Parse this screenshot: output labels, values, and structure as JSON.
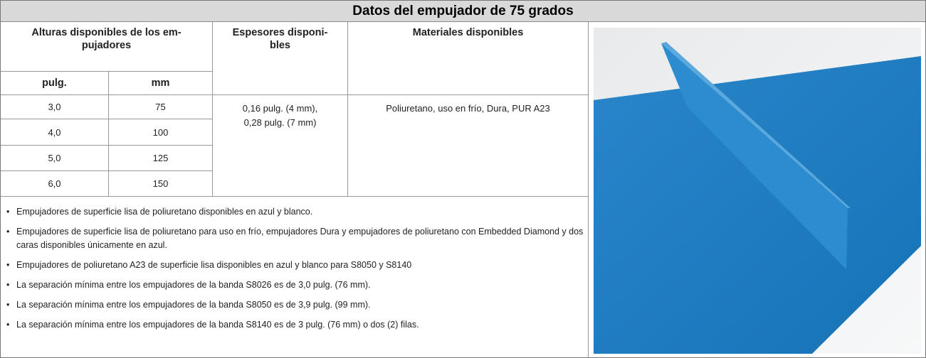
{
  "title": "Datos del empujador de 75 grados",
  "table": {
    "headers": [
      "Alturas disponibles de los em-\npujadores",
      "Espesores disponi-\nbles",
      "Materiales disponibles"
    ],
    "subheaders": [
      "pulg.",
      "mm"
    ],
    "rows": [
      [
        "3,0",
        "75"
      ],
      [
        "4,0",
        "100"
      ],
      [
        "5,0",
        "125"
      ],
      [
        "6,0",
        "150"
      ]
    ],
    "thicknesses": "0,16 pulg. (4 mm),\n0,28 pulg. (7 mm)",
    "materials": "Poliuretano, uso en frío, Dura, PUR A23"
  },
  "notes": [
    "Empujadores de superficie lisa de poliuretano disponibles en azul y blanco.",
    "Empujadores de superficie lisa de poliuretano para uso en frío, empujadores Dura y empujadores de poliuretano con Embedded Diamond y dos caras disponibles únicamente en azul.",
    "Empujadores de poliuretano A23 de superficie lisa disponibles en azul y blanco para S8050 y S8140",
    "La separación mínima entre los empujadores de la banda S8026 es de 3,0 pulg. (76 mm).",
    "La separación mínima entre los empujadores de la banda S8050 es de 3,9 pulg. (99 mm).",
    "La separación mínima entre los empujadores de la banda S8140 es de 3 pulg. (76 mm) o dos (2) filas."
  ]
}
